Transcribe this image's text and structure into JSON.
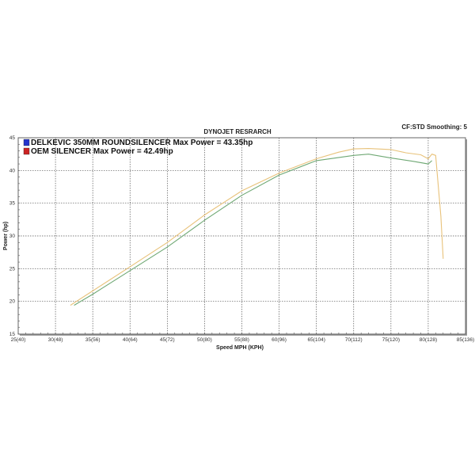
{
  "chart_data": {
    "type": "line",
    "title": "DYNOJET RESRARCH",
    "subtitle": "CF:STD Smoothing: 5",
    "xlabel": "Speed MPH (KPH)",
    "ylabel": "Power (hp)",
    "xlim": [
      25,
      85
    ],
    "ylim": [
      15,
      45
    ],
    "grid": true,
    "legend_placement": "top-left",
    "x_ticks": [
      25,
      30,
      35,
      40,
      45,
      50,
      55,
      60,
      65,
      70,
      75,
      80,
      85
    ],
    "x_tick_labels": [
      "25(40)",
      "30(48)",
      "35(56)",
      "40(64)",
      "45(72)",
      "50(80)",
      "55(88)",
      "60(96)",
      "65(104)",
      "70(112)",
      "75(120)",
      "80(128)",
      "85(136)"
    ],
    "y_ticks": [
      15,
      20,
      25,
      30,
      35,
      40,
      45
    ],
    "y_tick_labels": [
      "15",
      "20",
      "25",
      "30",
      "35",
      "40",
      "45"
    ],
    "series": [
      {
        "name": "DELKEVIC 350MM ROUNDSILENCER  Max Power = 43.35hp",
        "legend_color": "#2233cc",
        "line_color": "#e8c27a",
        "x": [
          32,
          35,
          40,
          45,
          50,
          55,
          60,
          65,
          68,
          70,
          72,
          75,
          77,
          79,
          80,
          80.5,
          81,
          81.7,
          82
        ],
        "y": [
          19.4,
          21.6,
          25.3,
          29.0,
          33.2,
          36.9,
          39.6,
          41.8,
          42.8,
          43.3,
          43.35,
          43.2,
          42.7,
          42.4,
          41.8,
          42.5,
          42.3,
          33,
          26.5
        ]
      },
      {
        "name": "OEM SILENCER Max Power = 42.49hp",
        "legend_color": "#cc2222",
        "line_color": "#6fa874",
        "x": [
          32.5,
          35,
          40,
          45,
          50,
          55,
          60,
          65,
          70,
          72,
          75,
          78,
          80,
          80.5
        ],
        "y": [
          19.4,
          21.1,
          24.7,
          28.3,
          32.4,
          36.2,
          39.3,
          41.5,
          42.3,
          42.49,
          41.9,
          41.4,
          41.0,
          41.5
        ]
      }
    ]
  }
}
